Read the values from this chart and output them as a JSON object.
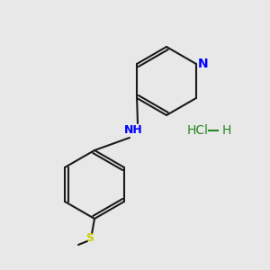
{
  "bg_color": "#e8e8e8",
  "bond_color": "#1a1a1a",
  "n_color": "#0000ff",
  "s_color": "#cccc00",
  "hcl_color": "#228822",
  "hcl_text": "HCl",
  "h_text": "H",
  "n_text": "N",
  "nh_text": "NH",
  "s_label": "S",
  "figsize": [
    3.0,
    3.0
  ],
  "dpi": 100
}
